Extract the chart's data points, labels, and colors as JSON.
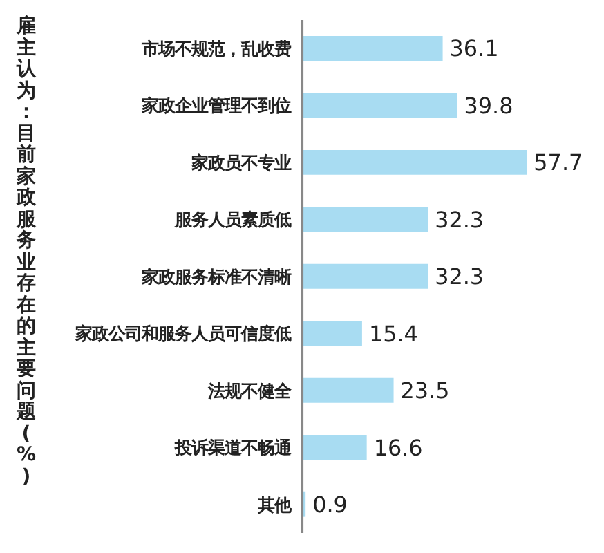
{
  "chart_data": {
    "type": "bar",
    "orientation": "horizontal",
    "title": "雇主认为：目前家政服务业存在的主要问题(%)",
    "categories": [
      "市场不规范，乱收费",
      "家政企业管理不到位",
      "家政员不专业",
      "服务人员素质低",
      "家政服务标准不清晰",
      "家政公司和服务人员可信度低",
      "法规不健全",
      "投诉渠道不畅通",
      "其他"
    ],
    "values": [
      36.1,
      39.8,
      57.7,
      32.3,
      32.3,
      15.4,
      23.5,
      16.6,
      0.9
    ],
    "color": "#a8dcf2",
    "data_labels": true
  }
}
